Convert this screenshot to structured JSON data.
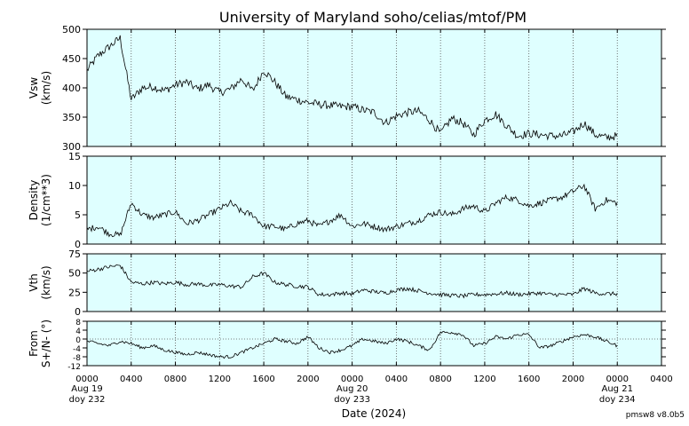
{
  "title": "University of Maryland  soho/celias/mtof/PM",
  "version": "pmsw8 v8.0b5",
  "xlabel": "Date (2024)",
  "x_time_ticks": [
    "0000",
    "0400",
    "0800",
    "1200",
    "1600",
    "2000",
    "0000",
    "0400",
    "0800",
    "1200",
    "1600",
    "2000",
    "0000",
    "0400"
  ],
  "x_date_labels": [
    {
      "hour": 0,
      "date": "Aug 19",
      "doy": "doy 232"
    },
    {
      "hour": 24,
      "date": "Aug 20",
      "doy": "doy 233"
    },
    {
      "hour": 48,
      "date": "Aug 21",
      "doy": "doy 234"
    }
  ],
  "colors": {
    "panel_bg": "#dfffff",
    "trace": "#000000",
    "grid": "#555555"
  },
  "chart_data": [
    {
      "type": "line",
      "key": "vsw",
      "ylabel_lines": [
        "Vsw",
        "(km/s)"
      ],
      "ylim": [
        300,
        500
      ],
      "yticks": [
        300,
        350,
        400,
        450,
        500
      ],
      "x_range_hours": [
        0,
        52
      ],
      "data_end_hour": 48,
      "x": [
        0,
        1,
        2,
        3,
        4,
        5,
        6,
        7,
        8,
        9,
        10,
        11,
        12,
        13,
        14,
        15,
        16,
        17,
        18,
        19,
        20,
        21,
        22,
        23,
        24,
        25,
        26,
        27,
        28,
        29,
        30,
        31,
        32,
        33,
        34,
        35,
        36,
        37,
        38,
        39,
        40,
        41,
        42,
        43,
        44,
        45,
        46,
        47,
        48
      ],
      "values": [
        430,
        455,
        470,
        485,
        380,
        400,
        402,
        395,
        405,
        410,
        398,
        405,
        392,
        398,
        415,
        395,
        430,
        410,
        385,
        380,
        375,
        372,
        370,
        368,
        368,
        362,
        358,
        340,
        352,
        358,
        360,
        345,
        322,
        348,
        340,
        320,
        345,
        355,
        335,
        318,
        322,
        320,
        318,
        318,
        325,
        340,
        320,
        315,
        318
      ]
    },
    {
      "type": "line",
      "key": "density",
      "ylabel_lines": [
        "Density",
        "(1/cm**3)"
      ],
      "ylim": [
        0,
        15
      ],
      "yticks": [
        0,
        5,
        10,
        15
      ],
      "x_range_hours": [
        0,
        52
      ],
      "data_end_hour": 48,
      "x": [
        0,
        1,
        2,
        3,
        4,
        5,
        6,
        7,
        8,
        9,
        10,
        11,
        12,
        13,
        14,
        15,
        16,
        17,
        18,
        19,
        20,
        21,
        22,
        23,
        24,
        25,
        26,
        27,
        28,
        29,
        30,
        31,
        32,
        33,
        34,
        35,
        36,
        37,
        38,
        39,
        40,
        41,
        42,
        43,
        44,
        45,
        46,
        47,
        48
      ],
      "values": [
        2.5,
        3.0,
        1.8,
        1.5,
        7.0,
        5.0,
        4.5,
        5.0,
        5.5,
        3.5,
        4.0,
        5.0,
        6.0,
        7.0,
        5.5,
        5.0,
        3.0,
        3.0,
        2.5,
        3.5,
        4.0,
        3.0,
        4.0,
        5.0,
        3.0,
        3.5,
        3.0,
        2.5,
        3.0,
        3.5,
        4.0,
        5.0,
        5.5,
        5.0,
        6.0,
        6.5,
        5.5,
        7.0,
        8.0,
        7.5,
        6.5,
        7.0,
        7.5,
        8.0,
        9.0,
        10.0,
        6.0,
        7.5,
        7.0
      ]
    },
    {
      "type": "line",
      "key": "vth",
      "ylabel_lines": [
        "Vth",
        "(km/s)"
      ],
      "ylim": [
        0,
        75
      ],
      "yticks": [
        0,
        25,
        50,
        75
      ],
      "x_range_hours": [
        0,
        52
      ],
      "data_end_hour": 48,
      "x": [
        0,
        1,
        2,
        3,
        4,
        5,
        6,
        7,
        8,
        9,
        10,
        11,
        12,
        13,
        14,
        15,
        16,
        17,
        18,
        19,
        20,
        21,
        22,
        23,
        24,
        25,
        26,
        27,
        28,
        29,
        30,
        31,
        32,
        33,
        34,
        35,
        36,
        37,
        38,
        39,
        40,
        41,
        42,
        43,
        44,
        45,
        46,
        47,
        48
      ],
      "values": [
        52,
        55,
        58,
        60,
        38,
        36,
        38,
        36,
        38,
        35,
        36,
        34,
        35,
        33,
        32,
        45,
        50,
        38,
        35,
        33,
        32,
        22,
        22,
        24,
        23,
        28,
        26,
        24,
        28,
        30,
        27,
        24,
        22,
        21,
        20,
        22,
        22,
        23,
        24,
        22,
        23,
        24,
        22,
        22,
        22,
        30,
        24,
        23,
        23
      ]
    },
    {
      "type": "line",
      "key": "from",
      "ylabel_lines": [
        "From",
        "S+/N- (°)"
      ],
      "ylim": [
        -12,
        8
      ],
      "yticks": [
        -12,
        -8,
        -4,
        0,
        4,
        8
      ],
      "reference_line": 0,
      "x_range_hours": [
        0,
        52
      ],
      "data_end_hour": 48,
      "x": [
        0,
        1,
        2,
        3,
        4,
        5,
        6,
        7,
        8,
        9,
        10,
        11,
        12,
        13,
        14,
        15,
        16,
        17,
        18,
        19,
        20,
        21,
        22,
        23,
        24,
        25,
        26,
        27,
        28,
        29,
        30,
        31,
        32,
        33,
        34,
        35,
        36,
        37,
        38,
        39,
        40,
        41,
        42,
        43,
        44,
        45,
        46,
        47,
        48
      ],
      "values": [
        -1,
        -2,
        -3,
        -1,
        -2,
        -4,
        -3,
        -5,
        -6,
        -7,
        -6,
        -7,
        -8,
        -8,
        -6,
        -4,
        -2,
        0,
        -1,
        -2,
        1,
        -4,
        -6,
        -5,
        -3,
        0,
        -1,
        -2,
        0,
        -1,
        -3,
        -5,
        3,
        3,
        2,
        -3,
        -2,
        1,
        0,
        2,
        2,
        -4,
        -3,
        -1,
        1,
        2,
        1,
        -1,
        -3
      ]
    }
  ]
}
